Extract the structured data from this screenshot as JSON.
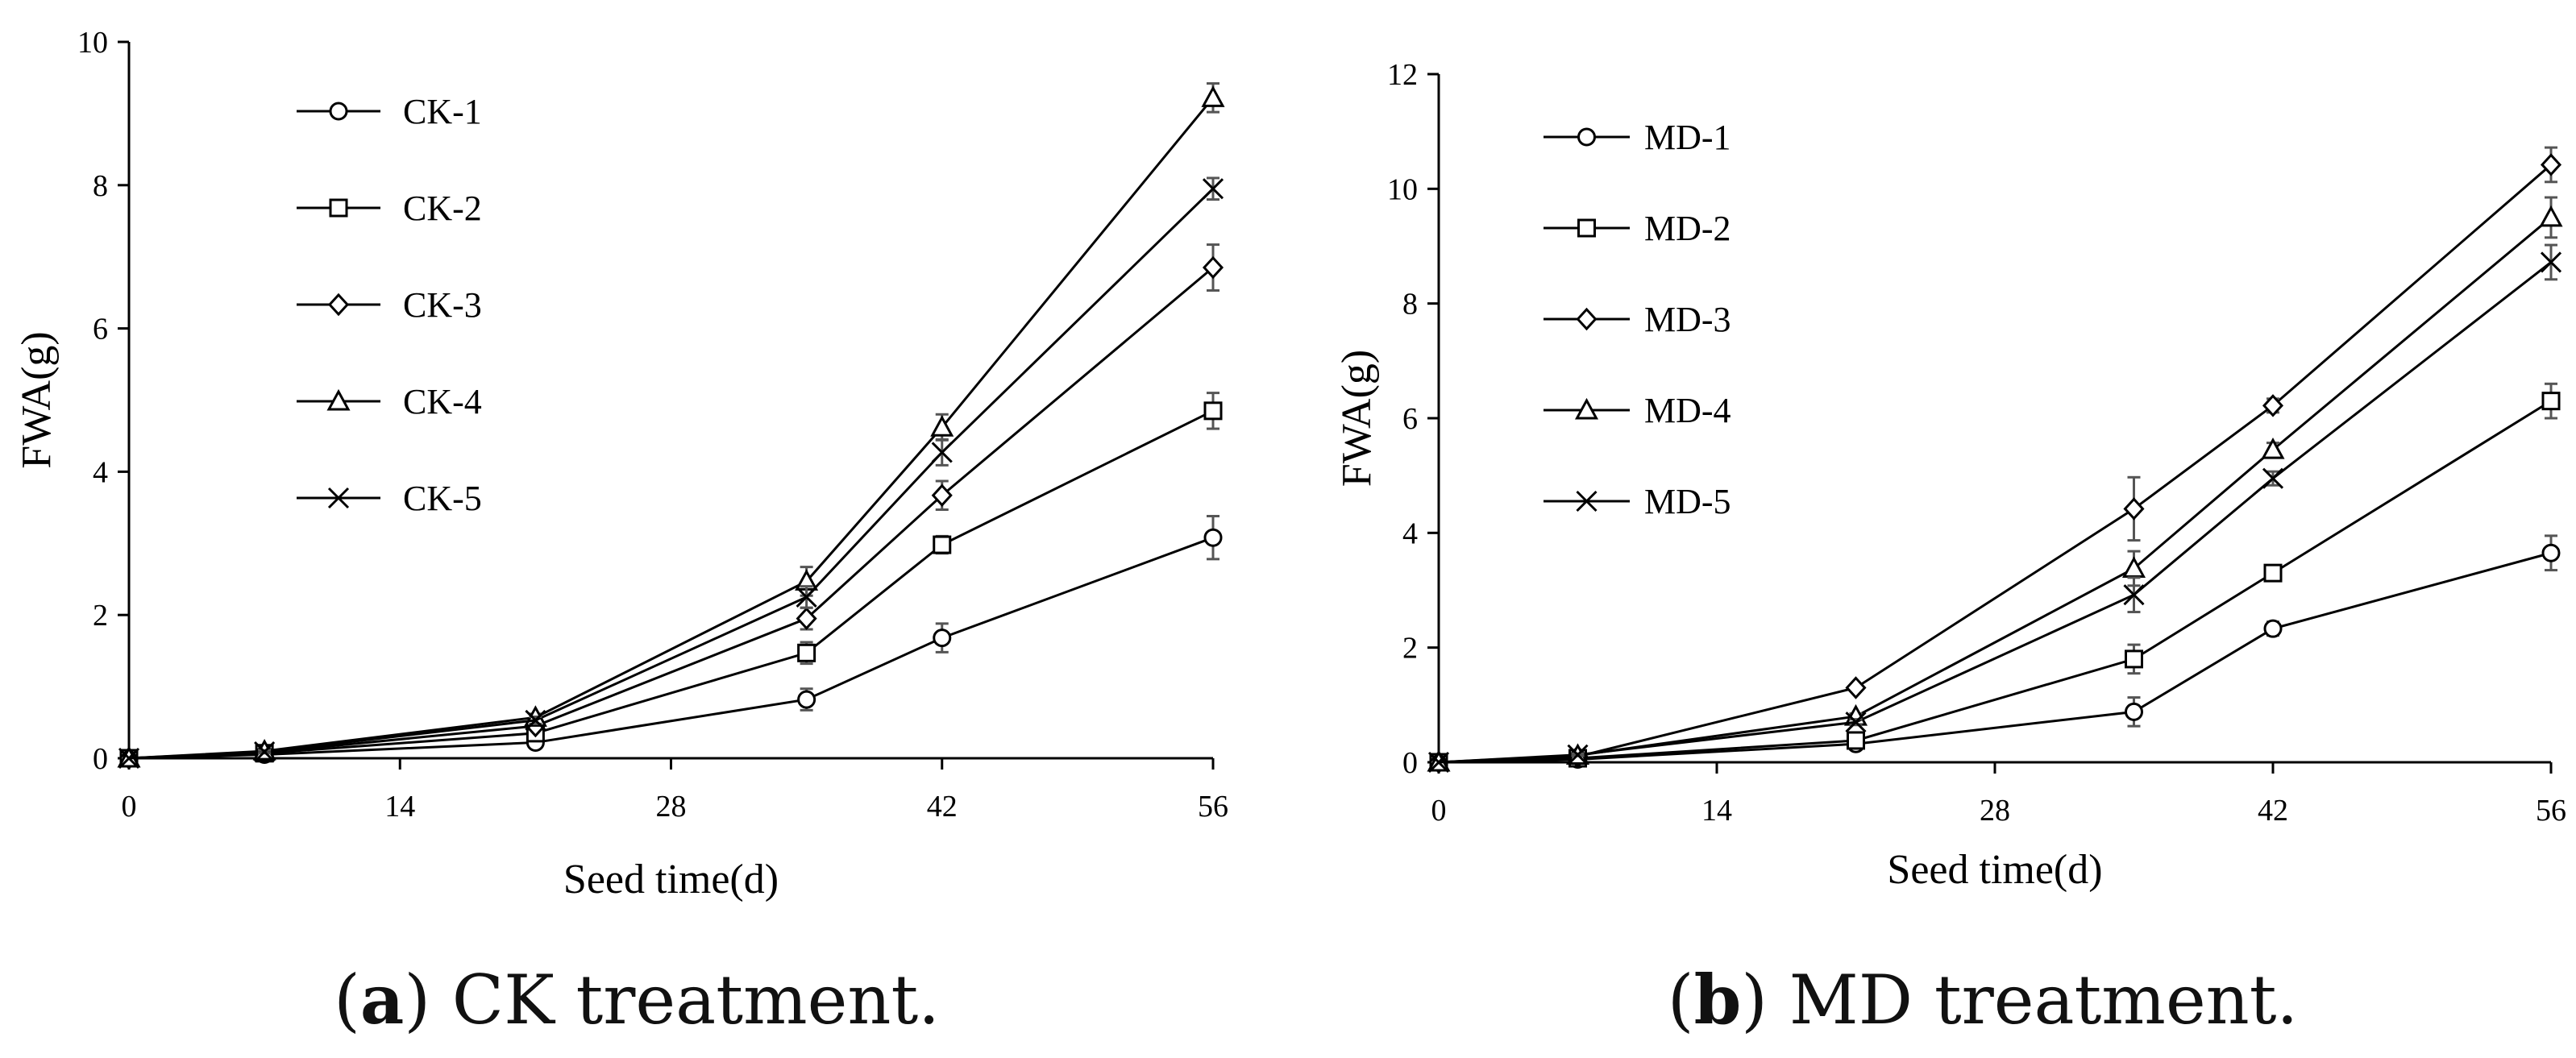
{
  "chart_data": [
    {
      "type": "line",
      "caption": {
        "letter": "a",
        "text": " CK treatment."
      },
      "xlabel": "Seed time(d)",
      "ylabel": "FWA(g)",
      "xlim": [
        0,
        56
      ],
      "ylim": [
        0,
        10
      ],
      "xticks": [
        0,
        14,
        28,
        42,
        56
      ],
      "yticks": [
        0,
        2,
        4,
        6,
        8,
        10
      ],
      "x": [
        0,
        7,
        21,
        35,
        42,
        56
      ],
      "legend_position": "top-left",
      "series": [
        {
          "name": "CK-1",
          "marker": "circle",
          "values": [
            0,
            0.05,
            0.22,
            0.82,
            1.68,
            3.08
          ],
          "errors": [
            0,
            0.02,
            0.05,
            0.15,
            0.2,
            0.3
          ]
        },
        {
          "name": "CK-2",
          "marker": "square",
          "values": [
            0,
            0.07,
            0.35,
            1.47,
            2.98,
            4.85
          ],
          "errors": [
            0,
            0.02,
            0.05,
            0.15,
            0.12,
            0.25
          ]
        },
        {
          "name": "CK-3",
          "marker": "diamond",
          "values": [
            0,
            0.08,
            0.45,
            1.95,
            3.67,
            6.85
          ],
          "errors": [
            0,
            0.02,
            0.05,
            0.15,
            0.2,
            0.32
          ]
        },
        {
          "name": "CK-4",
          "marker": "triangle",
          "values": [
            0,
            0.1,
            0.57,
            2.47,
            4.62,
            9.22
          ],
          "errors": [
            0,
            0.02,
            0.05,
            0.2,
            0.18,
            0.2
          ]
        },
        {
          "name": "CK-5",
          "marker": "x",
          "values": [
            0,
            0.09,
            0.53,
            2.25,
            4.27,
            7.95
          ],
          "errors": [
            0,
            0.02,
            0.05,
            0.15,
            0.18,
            0.15
          ]
        }
      ]
    },
    {
      "type": "line",
      "caption": {
        "letter": "b",
        "text": " MD treatment."
      },
      "xlabel": "Seed time(d)",
      "ylabel": "FWA(g)",
      "xlim": [
        0,
        56
      ],
      "ylim": [
        0,
        12
      ],
      "xticks": [
        0,
        14,
        28,
        42,
        56
      ],
      "yticks": [
        0,
        2,
        4,
        6,
        8,
        10,
        12
      ],
      "x": [
        0,
        7,
        21,
        35,
        42,
        56
      ],
      "legend_position": "top-left",
      "series": [
        {
          "name": "MD-1",
          "marker": "circle",
          "values": [
            0,
            0.05,
            0.32,
            0.88,
            2.33,
            3.65
          ],
          "errors": [
            0,
            0.02,
            0.05,
            0.25,
            0.12,
            0.3
          ]
        },
        {
          "name": "MD-2",
          "marker": "square",
          "values": [
            0,
            0.07,
            0.38,
            1.8,
            3.3,
            6.3
          ],
          "errors": [
            0,
            0.02,
            0.05,
            0.25,
            0.12,
            0.3
          ]
        },
        {
          "name": "MD-3",
          "marker": "diamond",
          "values": [
            0,
            0.1,
            1.3,
            4.42,
            6.22,
            10.42
          ],
          "errors": [
            0,
            0.02,
            0.05,
            0.55,
            0.12,
            0.3
          ]
        },
        {
          "name": "MD-4",
          "marker": "triangle",
          "values": [
            0,
            0.12,
            0.8,
            3.38,
            5.45,
            9.5
          ],
          "errors": [
            0,
            0.02,
            0.05,
            0.3,
            0.12,
            0.35
          ]
        },
        {
          "name": "MD-5",
          "marker": "x",
          "values": [
            0,
            0.13,
            0.7,
            2.92,
            4.95,
            8.72
          ],
          "errors": [
            0,
            0.02,
            0.05,
            0.3,
            0.12,
            0.3
          ]
        }
      ]
    }
  ]
}
